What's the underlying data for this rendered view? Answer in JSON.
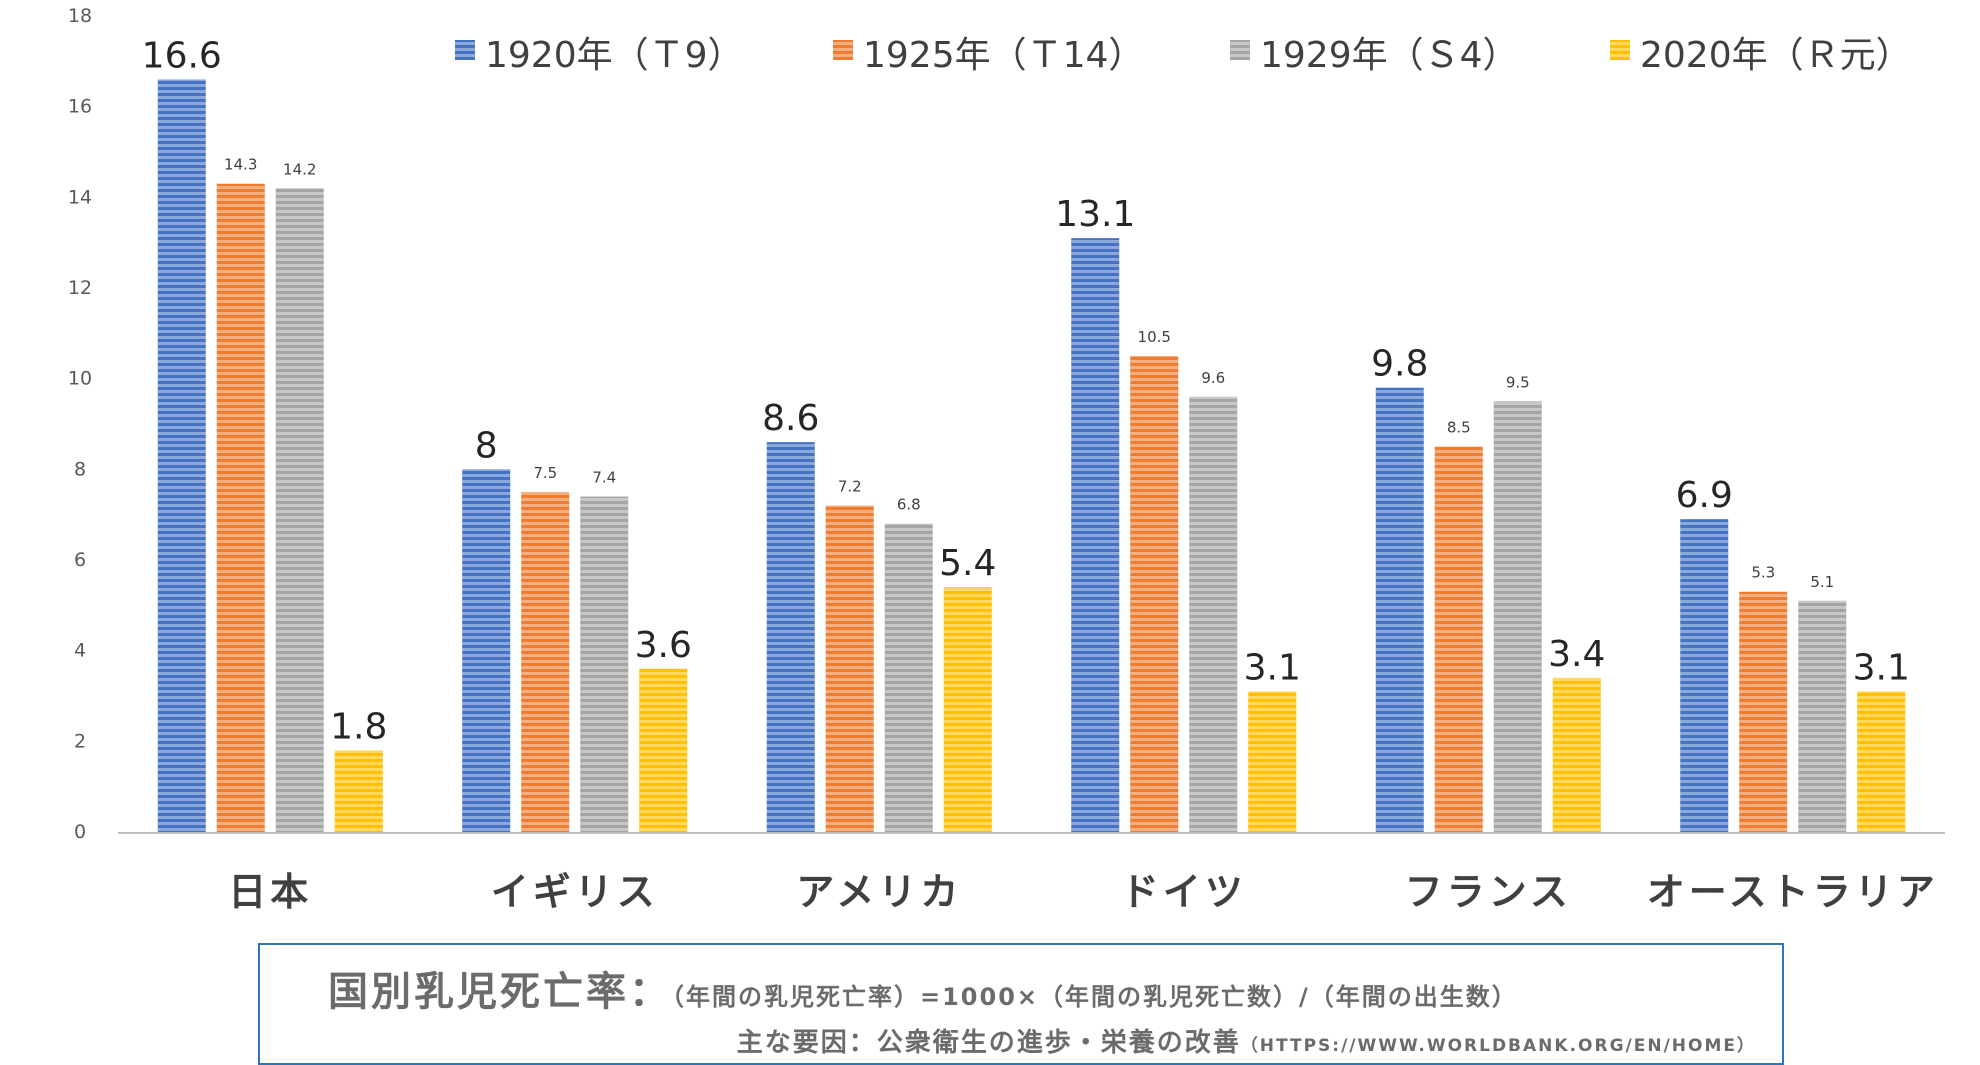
{
  "chart_data": {
    "type": "bar",
    "categories": [
      "日本",
      "イギリス",
      "アメリカ",
      "ドイツ",
      "フランス",
      "オーストラリア"
    ],
    "series": [
      {
        "name": "1920年（Ｔ9）",
        "color": "#4472C4",
        "values": [
          16.6,
          8,
          8.6,
          13.1,
          9.8,
          6.9
        ]
      },
      {
        "name": "1925年（Ｔ14）",
        "color": "#ED7D31",
        "values": [
          14.3,
          7.5,
          7.2,
          10.5,
          8.5,
          5.3
        ]
      },
      {
        "name": "1929年（Ｓ4）",
        "color": "#A5A5A5",
        "values": [
          14.2,
          7.4,
          6.8,
          9.6,
          9.5,
          5.1
        ]
      },
      {
        "name": "2020年（Ｒ元）",
        "color": "#FFC000",
        "values": [
          1.8,
          3.6,
          5.4,
          3.1,
          3.4,
          3.1
        ]
      }
    ],
    "yticks": [
      "0",
      "2",
      "4",
      "6",
      "8",
      "10",
      "12",
      "14",
      "16",
      "18"
    ],
    "ylim": [
      0,
      18
    ],
    "title": "",
    "xlabel": "",
    "ylabel": "",
    "legend": "top",
    "grid": false
  },
  "note": {
    "title": "国別乳児死亡率：",
    "formula": "（年間の乳児死亡率）=1000×（年間の乳児死亡数）/（年間の出生数）",
    "factor": "主な要因：公衆衛生の進歩・栄養の改善",
    "source": "（HTTPS://WWW.WORLDBANK.ORG/EN/HOME）"
  }
}
